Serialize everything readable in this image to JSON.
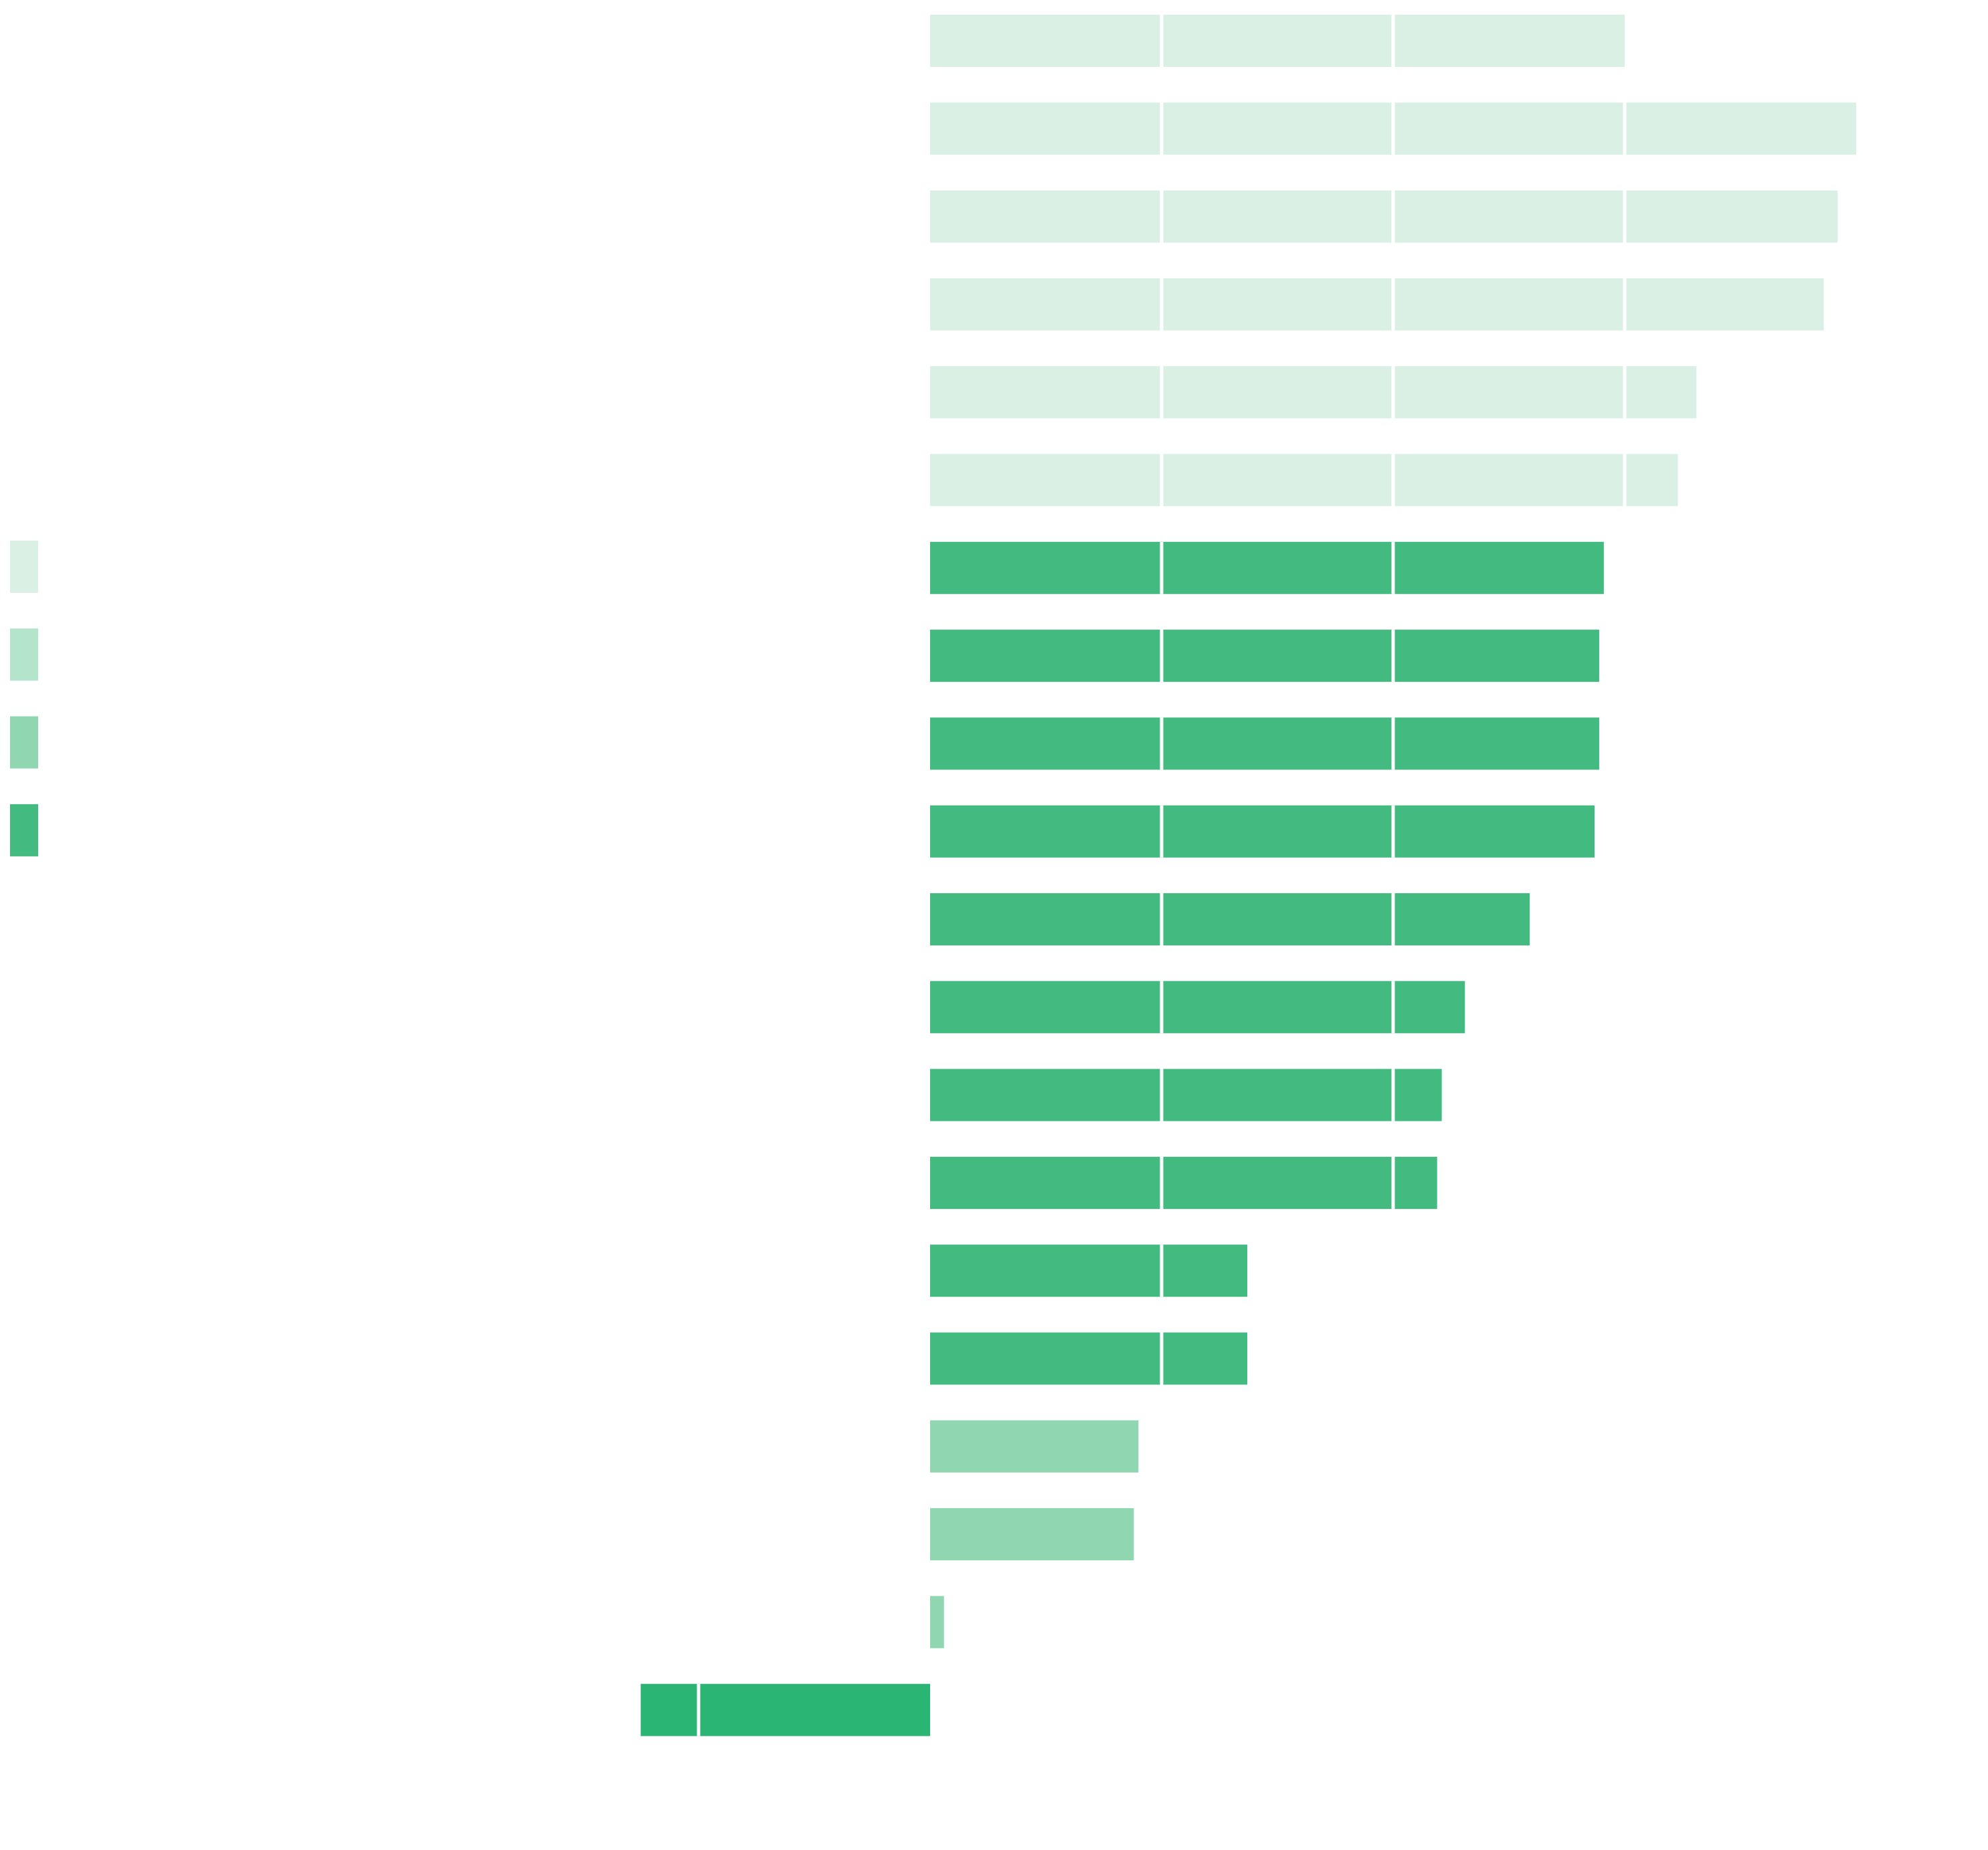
{
  "chart_data": {
    "type": "bar",
    "orientation": "horizontal",
    "values": [
      3.0,
      4.0,
      3.92,
      3.86,
      3.31,
      3.23,
      2.91,
      2.89,
      2.89,
      2.87,
      2.59,
      2.31,
      2.21,
      2.19,
      1.37,
      1.37,
      0.9,
      0.88,
      0.06,
      -1.25
    ],
    "bar_shades": [
      0,
      0,
      0,
      0,
      0,
      0,
      3,
      3,
      3,
      3,
      3,
      3,
      3,
      3,
      3,
      3,
      2,
      2,
      2,
      4
    ],
    "xlim": [
      -4,
      4.5
    ],
    "grid": false,
    "legend_position": "left",
    "legend_shades": [
      0,
      1,
      2,
      3
    ],
    "colors": {
      "shades": [
        "#daf0e4",
        "#b4e4cc",
        "#90d7b1",
        "#43ba80",
        "#2ab574"
      ],
      "unit_divider": "#ffffff",
      "background": "#ffffff"
    }
  }
}
